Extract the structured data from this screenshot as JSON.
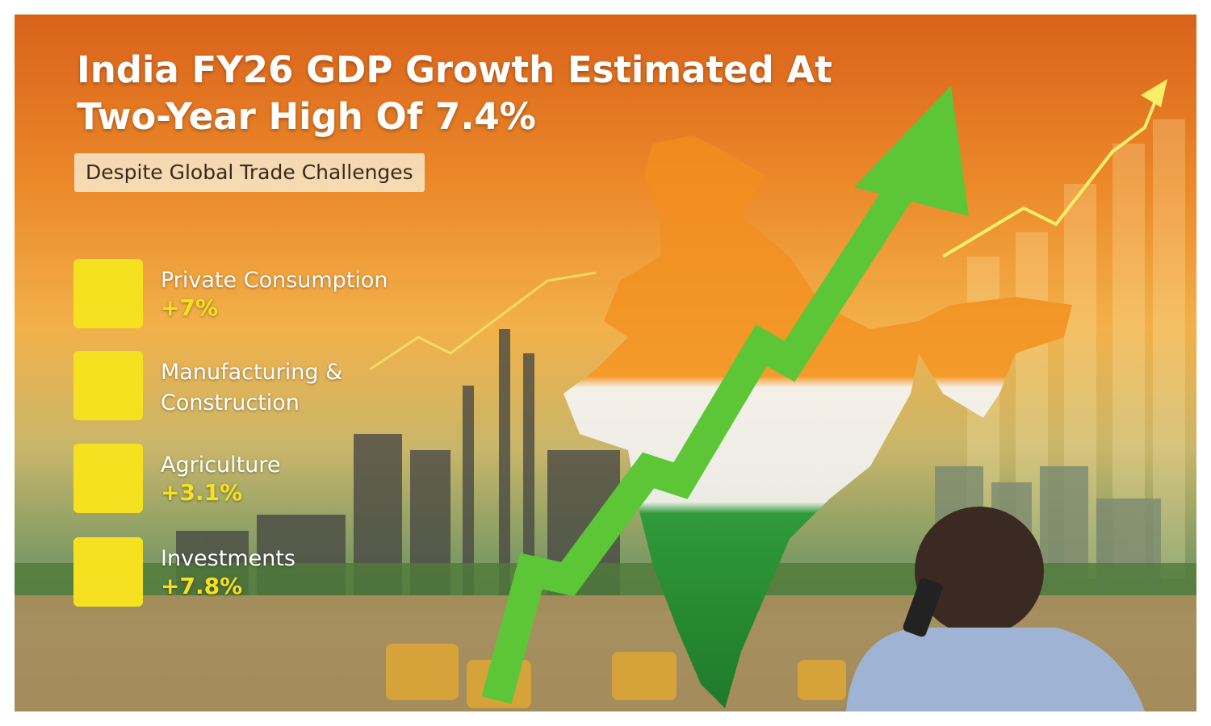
{
  "header": {
    "title": "India FY26 GDP Growth Estimated At Two-Year High Of 7.4%",
    "subtitle": "Despite Global Trade Challenges"
  },
  "items": [
    {
      "label": "Private Consumption",
      "value": "+7%"
    },
    {
      "label": "Manufacturing & Construction"
    },
    {
      "label": "Agriculture",
      "value": "+3.1%"
    },
    {
      "label": "Investments",
      "value": "+7.8%"
    }
  ]
}
